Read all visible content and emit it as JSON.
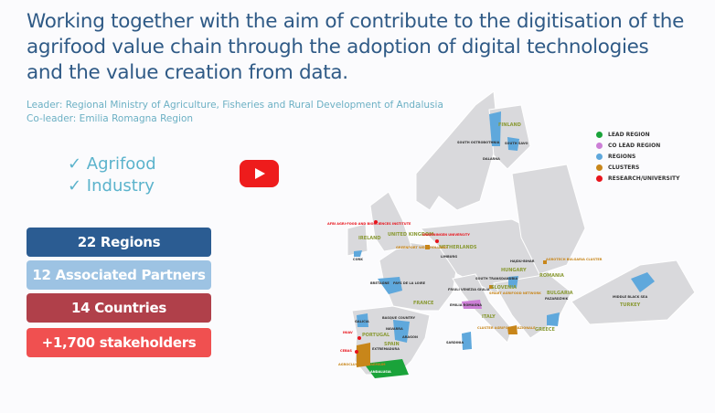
{
  "title": "Working together with the aim of contribute to the digitisation of the agrifood value chain through the adoption of digital technologies and the value creation from data.",
  "leader": "Leader: Regional Ministry of Agriculture, Fisheries and Rural Development of Andalusia",
  "co_leader": "Co-leader: Emilia Romagna Region",
  "sectors": [
    "✓ Agrifood",
    "✓ Industry"
  ],
  "video_icon": "youtube-play-icon",
  "stats": [
    {
      "label": "22 Regions",
      "color": "#2b5c92"
    },
    {
      "label": "12 Associated Partners",
      "color": "#9dc3e3"
    },
    {
      "label": "14 Countries",
      "color": "#b0404a"
    },
    {
      "label": "+1,700 stakeholders",
      "color": "#f05050"
    }
  ],
  "legend": [
    {
      "label": "LEAD REGION",
      "color": "#1aa33a"
    },
    {
      "label": "CO LEAD REGION",
      "color": "#cc7fd6"
    },
    {
      "label": "REGIONS",
      "color": "#5fa8dc"
    },
    {
      "label": "CLUSTERS",
      "color": "#c8861a"
    },
    {
      "label": "RESEARCH/UNIVERSITY",
      "color": "#e8141c"
    }
  ],
  "map_labels": {
    "countries": [
      "IRELAND",
      "UNITED KINGDOM",
      "NETHERLANDS",
      "FRANCE",
      "SPAIN",
      "PORTUGAL",
      "ITALY",
      "HUNGARY",
      "ROMANIA",
      "BULGARIA",
      "SLOVENIA",
      "GREECE",
      "TURKEY",
      "FINLAND"
    ],
    "regions": [
      "ANDALUSIA",
      "EXTREMADURA",
      "GALICIA",
      "NAVARRA",
      "ARAGON",
      "BASQUE COUNTRY",
      "BRETAGNE",
      "PAYS DE LA LOIRE",
      "LIMBURG",
      "EMILIA ROMAGNA",
      "FRIULI VENEZIA GIULIA",
      "SOUTH TRANSDANUBIA",
      "HAJDU-BIHAR",
      "PAZARDZHIK",
      "MIDDLE BLACK SEA",
      "SARDINIA",
      "SOUTH SAVO",
      "DALARNA",
      "SOUTH OSTROBOTHNIA",
      "CORK"
    ],
    "clusters": [
      "GREENPORT WEST-HOLLAND",
      "AGROTECH BULGARIA CLUSTER",
      "CLUSTER AGRIFOOD NAZIONALE",
      "SMART AGRIFOOD NETWORK",
      "AGROCLUSTER PRAEMIUM"
    ],
    "research": [
      "WAGENINGEN UNIVERSITY",
      "AFBI AGRI-FOOD AND BIOSCIENCES INSTITUTE",
      "INIAV",
      "CEBAS"
    ]
  }
}
